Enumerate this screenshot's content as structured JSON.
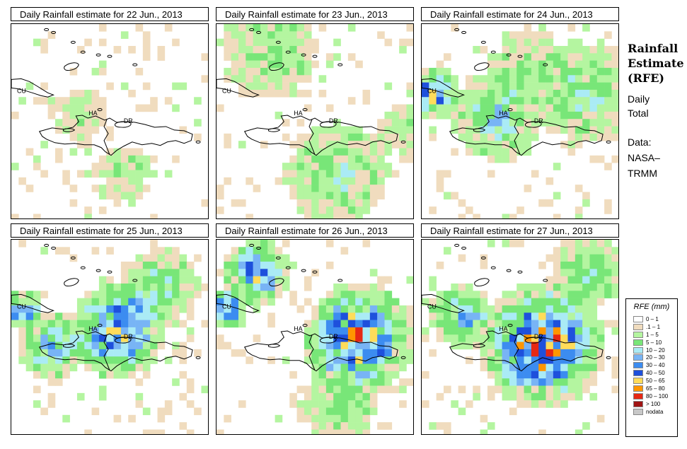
{
  "panels": [
    {
      "title": "Daily Rainfall estimate for  22 Jun., 2013"
    },
    {
      "title": "Daily Rainfall estimate for  23 Jun., 2013"
    },
    {
      "title": "Daily Rainfall estimate for  24 Jun., 2013"
    },
    {
      "title": "Daily Rainfall estimate for  25 Jun., 2013"
    },
    {
      "title": "Daily Rainfall estimate for  26 Jun., 2013"
    },
    {
      "title": "Daily Rainfall estimate for  27 Jun., 2013"
    }
  ],
  "map_labels": {
    "cu": "CU",
    "ha": "HA",
    "dr": "DR"
  },
  "side": {
    "title_lines": [
      "Rainfall",
      "Estimate",
      "(RFE)"
    ],
    "daily_lines": [
      "Daily",
      "Total"
    ],
    "data_lines": [
      "Data:",
      "NASA–",
      "TRMM"
    ]
  },
  "legend": {
    "title": "RFE (mm)",
    "items": [
      {
        "label": "0 – 1",
        "color": "#ffffff"
      },
      {
        "label": ".1 – 1",
        "color": "#f0dcbe"
      },
      {
        "label": "1 – 5",
        "color": "#b4f5a0"
      },
      {
        "label": "5 – 10",
        "color": "#78e678"
      },
      {
        "label": "10 – 20",
        "color": "#aaebf5"
      },
      {
        "label": "20 – 30",
        "color": "#78b4f5"
      },
      {
        "label": "30 – 40",
        "color": "#3c8cf0"
      },
      {
        "label": "40 – 50",
        "color": "#1e50dc"
      },
      {
        "label": "50 – 65",
        "color": "#ffdc5a"
      },
      {
        "label": "65 – 80",
        "color": "#ff9600"
      },
      {
        "label": "80 – 100",
        "color": "#e62814"
      },
      {
        "label": "> 100",
        "color": "#a01414"
      },
      {
        "label": "nodata",
        "color": "#c8c8c8"
      }
    ]
  }
}
